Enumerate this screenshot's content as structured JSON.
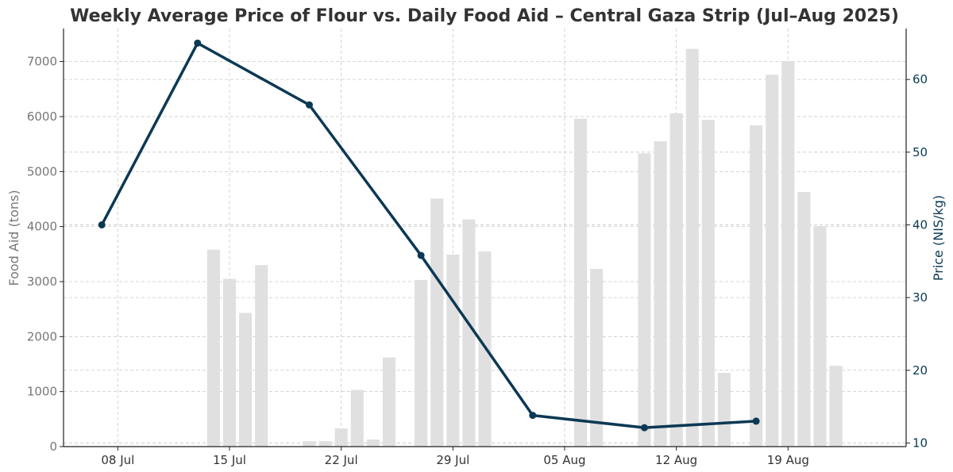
{
  "chart_data": {
    "type": "bar+line",
    "title": "Weekly Average Price of Flour vs. Daily Food Aid – Central Gaza Strip (Jul–Aug 2025)",
    "ylabel_left": "Food Aid (tons)",
    "ylabel_right": "Price (NIS/kg)",
    "x_ticks": [
      "08 Jul",
      "15 Jul",
      "22 Jul",
      "29 Jul",
      "05 Aug",
      "12 Aug",
      "19 Aug"
    ],
    "x_tick_days": [
      8,
      15,
      22,
      29,
      36,
      43,
      50
    ],
    "xlim": [
      4.6,
      57.4
    ],
    "ylim_left": [
      0,
      7600
    ],
    "ylim_right": [
      9.5,
      67
    ],
    "yticks_left": [
      0,
      1000,
      2000,
      3000,
      4000,
      5000,
      6000,
      7000
    ],
    "yticks_right": [
      10,
      20,
      30,
      40,
      50,
      60
    ],
    "grid": true,
    "bar_series": {
      "name": "Food Aid (tons)",
      "color": "#e0e0e0",
      "points": [
        {
          "day": 14,
          "value": 3580
        },
        {
          "day": 15,
          "value": 3050
        },
        {
          "day": 16,
          "value": 2430
        },
        {
          "day": 17,
          "value": 3300
        },
        {
          "day": 20,
          "value": 100
        },
        {
          "day": 21,
          "value": 100
        },
        {
          "day": 22,
          "value": 330
        },
        {
          "day": 23,
          "value": 1030
        },
        {
          "day": 24,
          "value": 130
        },
        {
          "day": 25,
          "value": 1620
        },
        {
          "day": 27,
          "value": 3030
        },
        {
          "day": 28,
          "value": 4510
        },
        {
          "day": 29,
          "value": 3490
        },
        {
          "day": 30,
          "value": 4130
        },
        {
          "day": 31,
          "value": 3550
        },
        {
          "day": 37,
          "value": 5960
        },
        {
          "day": 38,
          "value": 3230
        },
        {
          "day": 41,
          "value": 5330
        },
        {
          "day": 42,
          "value": 5550
        },
        {
          "day": 43,
          "value": 6060
        },
        {
          "day": 44,
          "value": 7230
        },
        {
          "day": 45,
          "value": 5940
        },
        {
          "day": 46,
          "value": 1340
        },
        {
          "day": 48,
          "value": 5840
        },
        {
          "day": 49,
          "value": 6760
        },
        {
          "day": 50,
          "value": 7010
        },
        {
          "day": 51,
          "value": 4630
        },
        {
          "day": 52,
          "value": 4010
        },
        {
          "day": 53,
          "value": 1470
        }
      ]
    },
    "line_series": {
      "name": "Price (NIS/kg)",
      "color": "#0b3954",
      "points": [
        {
          "day": 7,
          "value": 40
        },
        {
          "day": 13,
          "value": 65
        },
        {
          "day": 20,
          "value": 56.5
        },
        {
          "day": 27,
          "value": 35.8
        },
        {
          "day": 34,
          "value": 13.8
        },
        {
          "day": 41,
          "value": 12.1
        },
        {
          "day": 48,
          "value": 13
        }
      ]
    }
  }
}
